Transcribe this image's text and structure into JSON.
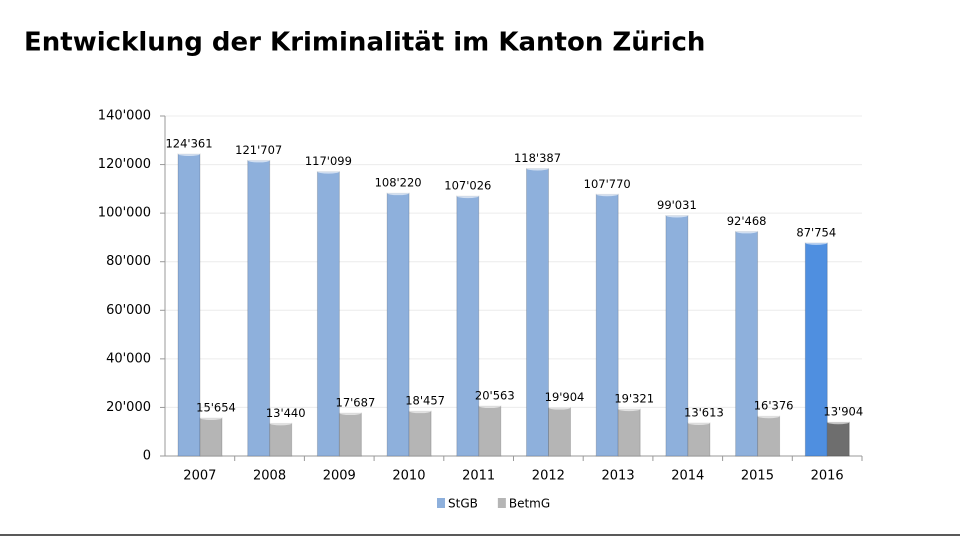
{
  "chart_data": {
    "type": "bar",
    "title": "Entwicklung der Kriminalität im Kanton Zürich",
    "categories": [
      "2007",
      "2008",
      "2009",
      "2010",
      "2011",
      "2012",
      "2013",
      "2014",
      "2015",
      "2016"
    ],
    "series": [
      {
        "name": "StGB",
        "color": "#8eb0dc",
        "colors": [
          "#8eb0dc",
          "#8eb0dc",
          "#8eb0dc",
          "#8eb0dc",
          "#8eb0dc",
          "#8eb0dc",
          "#8eb0dc",
          "#8eb0dc",
          "#8eb0dc",
          "#4f8fe0"
        ],
        "values": [
          124361,
          121707,
          117099,
          108220,
          107026,
          118387,
          107770,
          99031,
          92468,
          87754
        ],
        "value_labels": [
          "124'361",
          "121'707",
          "117'099",
          "108'220",
          "107'026",
          "118'387",
          "107'770",
          "99'031",
          "92'468",
          "87'754"
        ]
      },
      {
        "name": "BetmG",
        "color": "#b5b5b5",
        "colors": [
          "#b5b5b5",
          "#b5b5b5",
          "#b5b5b5",
          "#b5b5b5",
          "#b5b5b5",
          "#b5b5b5",
          "#b5b5b5",
          "#b5b5b5",
          "#b5b5b5",
          "#6e6e6e"
        ],
        "values": [
          15654,
          13440,
          17687,
          18457,
          20563,
          19904,
          19321,
          13613,
          16376,
          13904
        ],
        "value_labels": [
          "15'654",
          "13'440",
          "17'687",
          "18'457",
          "20'563",
          "19'904",
          "19'321",
          "13'613",
          "16'376",
          "13'904"
        ]
      }
    ],
    "ylim": [
      0,
      140000
    ],
    "yticks": [
      0,
      {
        "value": 20000,
        "label": "20'000"
      },
      {
        "value": 40000,
        "label": "40'000"
      },
      {
        "value": 60000,
        "label": "60'000"
      },
      {
        "value": 80000,
        "label": "80'000"
      },
      {
        "value": 100000,
        "label": "100'000"
      },
      {
        "value": 120000,
        "label": "120'000"
      },
      {
        "value": 140000,
        "label": "140'000"
      }
    ],
    "grid": true,
    "legend": "bottom"
  }
}
